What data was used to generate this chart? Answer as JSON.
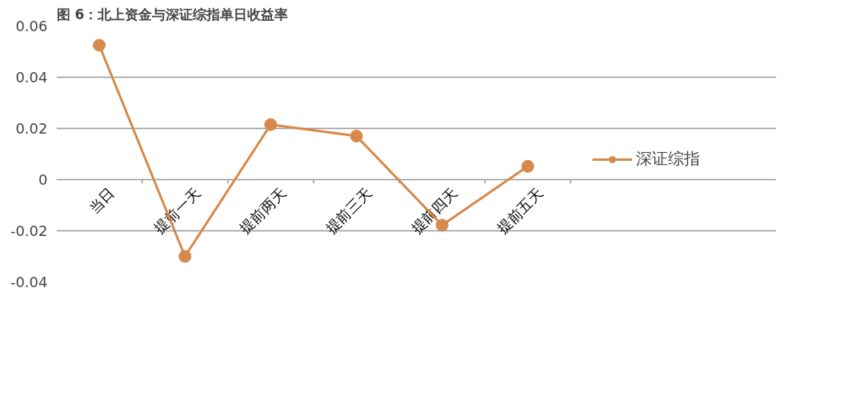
{
  "chart_data": {
    "type": "line",
    "title": "图 6：北上资金与深证综指单日收益率",
    "categories": [
      "当日",
      "提前一天",
      "提前两天",
      "提前三天",
      "提前四天",
      "提前五天"
    ],
    "series": [
      {
        "name": "深证综指",
        "color": "#d6894a",
        "values": [
          0.0525,
          -0.03,
          0.0215,
          0.017,
          -0.0178,
          0.0052
        ]
      }
    ],
    "ylim": [
      -0.04,
      0.06
    ],
    "yticks": [
      -0.04,
      -0.02,
      0,
      0.02,
      0.04,
      0.06
    ],
    "grid": "y",
    "legend": "right",
    "marker": "circle",
    "line_style": "solid"
  }
}
